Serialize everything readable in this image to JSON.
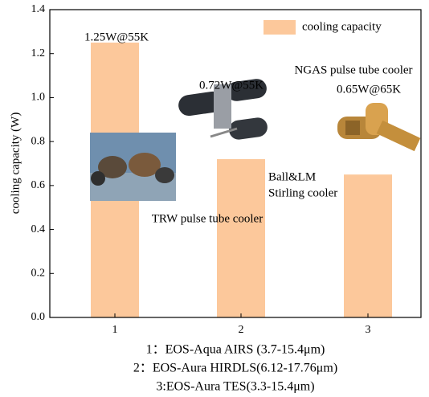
{
  "chart_data": {
    "type": "bar",
    "y_label": "cooling capacity (W)",
    "categories": [
      "1",
      "2",
      "3"
    ],
    "series": [
      {
        "name": "cooling capacity",
        "color": "#fcc89b",
        "values": [
          1.25,
          0.72,
          0.65
        ]
      }
    ],
    "ylim": [
      0,
      1.4
    ],
    "yticks": [
      {
        "value": 0,
        "label": "0.0"
      },
      0.2,
      0.4,
      0.6,
      0.8,
      {
        "value": 1,
        "label": "1.0"
      },
      1.2,
      1.4
    ],
    "annotations": [
      "1.25W@55K",
      "0.72W@55K",
      "NGAS pulse tube cooler",
      "0.65W@65K",
      "Ball&LM",
      "Stirling cooler",
      "TRW pulse tube cooler"
    ],
    "notes": [
      "1：EOS-Aqua AIRS (3.7-15.4μm)",
      "2：EOS-Aura HIRDLS(6.12-17.76μm)",
      "3:EOS-Aura TES(3.3-15.4μm)"
    ],
    "legend": "upper right"
  }
}
